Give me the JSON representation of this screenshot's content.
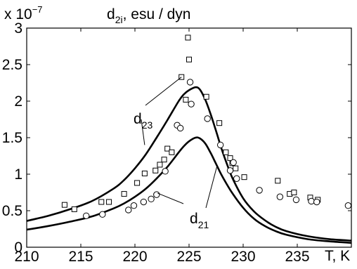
{
  "chart_data": {
    "type": "scatter",
    "title": "d_{2i},  esu / dyn",
    "title_parts": {
      "symbol": "d",
      "subscript": "2i",
      "suffix": ",   esu / dyn"
    },
    "multiplier": {
      "prefix": "x 10",
      "exponent": "−7"
    },
    "xlabel": "T, K",
    "ylabel": "",
    "xlim": [
      210,
      240
    ],
    "ylim": [
      0,
      3
    ],
    "x_ticks": [
      210,
      215,
      220,
      225,
      230,
      235
    ],
    "y_ticks": [
      0,
      0.5,
      1,
      1.5,
      2,
      2.5,
      3
    ],
    "y_tick_labels": [
      "0",
      "0.5",
      "1",
      "1.5",
      "2",
      "2.5",
      "3"
    ],
    "grid": false,
    "series": [
      {
        "marker": "square",
        "points": [
          [
            213.5,
            0.58
          ],
          [
            214.4,
            0.52
          ],
          [
            216.9,
            0.62
          ],
          [
            217.6,
            0.62
          ],
          [
            219.0,
            0.73
          ],
          [
            220.2,
            0.88
          ],
          [
            220.9,
            1.01
          ],
          [
            221.9,
            1.05
          ],
          [
            222.3,
            1.13
          ],
          [
            222.7,
            1.2
          ],
          [
            223.0,
            1.35
          ],
          [
            223.4,
            1.3
          ],
          [
            224.3,
            2.33
          ],
          [
            224.7,
            2.02
          ],
          [
            224.9,
            2.87
          ],
          [
            225.0,
            2.57
          ],
          [
            226.6,
            2.06
          ],
          [
            227.8,
            1.7
          ],
          [
            228.4,
            1.3
          ],
          [
            228.8,
            1.22
          ],
          [
            229.0,
            1.15
          ],
          [
            229.3,
            1.08
          ],
          [
            230.1,
            0.96
          ],
          [
            233.2,
            0.91
          ],
          [
            234.3,
            0.73
          ],
          [
            234.7,
            0.75
          ],
          [
            236.2,
            0.68
          ],
          [
            236.9,
            0.65
          ]
        ]
      },
      {
        "marker": "circle",
        "points": [
          [
            215.5,
            0.43
          ],
          [
            217.0,
            0.45
          ],
          [
            219.4,
            0.51
          ],
          [
            219.9,
            0.57
          ],
          [
            220.8,
            0.62
          ],
          [
            221.5,
            0.66
          ],
          [
            222.0,
            0.72
          ],
          [
            222.8,
            1.04
          ],
          [
            223.9,
            1.67
          ],
          [
            224.2,
            1.63
          ],
          [
            225.1,
            2.26
          ],
          [
            225.2,
            1.96
          ],
          [
            226.7,
            1.76
          ],
          [
            227.9,
            1.4
          ],
          [
            228.8,
            1.05
          ],
          [
            229.1,
            1.16
          ],
          [
            229.4,
            0.94
          ],
          [
            231.5,
            0.78
          ],
          [
            233.4,
            0.69
          ],
          [
            234.9,
            0.65
          ],
          [
            236.3,
            0.63
          ],
          [
            236.8,
            0.62
          ],
          [
            239.7,
            0.57
          ]
        ]
      },
      {
        "name": "d_23",
        "marker": "line",
        "x": [
          210,
          212,
          214,
          216,
          218,
          219,
          220,
          221,
          222,
          223,
          224,
          224.5,
          225,
          225.6,
          226,
          226.5,
          227,
          227.5,
          228,
          228.5,
          229,
          230,
          231,
          232,
          233,
          234,
          236,
          238,
          240
        ],
        "y": [
          0.36,
          0.43,
          0.52,
          0.63,
          0.8,
          0.92,
          1.08,
          1.27,
          1.5,
          1.74,
          1.99,
          2.09,
          2.15,
          2.19,
          2.16,
          2.02,
          1.82,
          1.59,
          1.35,
          1.14,
          0.95,
          0.67,
          0.49,
          0.37,
          0.28,
          0.22,
          0.15,
          0.11,
          0.09
        ]
      },
      {
        "name": "d_21",
        "marker": "line",
        "x": [
          210,
          212,
          214,
          216,
          218,
          219,
          220,
          221,
          222,
          223,
          224,
          224.5,
          225,
          225.6,
          226,
          226.5,
          227,
          227.5,
          228,
          228.5,
          229,
          230,
          231,
          232,
          233,
          234,
          236,
          238,
          240
        ],
        "y": [
          0.24,
          0.29,
          0.35,
          0.42,
          0.53,
          0.6,
          0.69,
          0.8,
          0.94,
          1.1,
          1.29,
          1.38,
          1.45,
          1.5,
          1.49,
          1.42,
          1.29,
          1.14,
          0.99,
          0.86,
          0.74,
          0.54,
          0.39,
          0.29,
          0.22,
          0.17,
          0.11,
          0.08,
          0.06
        ]
      }
    ],
    "annotations": [
      {
        "label_symbol": "d",
        "label_subscript": "23",
        "target_series": "d_23"
      },
      {
        "label_symbol": "d",
        "label_subscript": "21",
        "target_series": "d_21"
      }
    ],
    "colors": {
      "axes": "#000000",
      "lines": "#000000",
      "markers": "#000000",
      "background": "#ffffff"
    }
  }
}
